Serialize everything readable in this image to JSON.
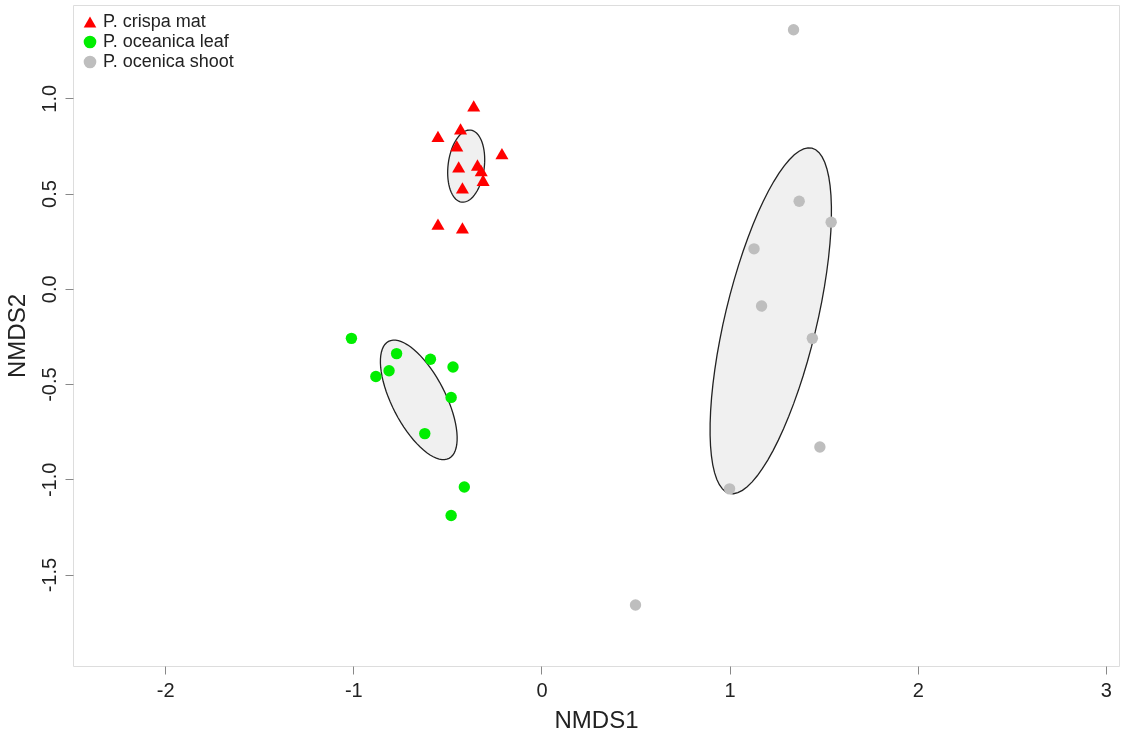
{
  "chart_data": {
    "type": "scatter",
    "xlabel": "NMDS1",
    "ylabel": "NMDS2",
    "xlim": [
      -2.49,
      3.07
    ],
    "ylim": [
      -1.98,
      1.49
    ],
    "xticks": [
      -2,
      -1,
      0,
      1,
      2,
      3
    ],
    "yticks": [
      {
        "value": -1.5,
        "label": "-1.5"
      },
      {
        "value": -1,
        "label": "-1.0"
      },
      {
        "value": -0.5,
        "label": "-0.5"
      },
      {
        "value": 0,
        "label": "0.0"
      },
      {
        "value": 0.5,
        "label": "0.5"
      },
      {
        "value": 1,
        "label": "1.0"
      }
    ],
    "grid": false,
    "legend": "top left",
    "series": [
      {
        "type": "scatter",
        "name": "P. crispa mat",
        "color": "#ff0000",
        "marker": "triangle",
        "x": [
          -0.36,
          -0.55,
          -0.43,
          -0.45,
          -0.21,
          -0.44,
          -0.34,
          -0.32,
          -0.31,
          -0.42,
          -0.55,
          -0.42
        ],
        "values": [
          0.96,
          0.8,
          0.84,
          0.75,
          0.71,
          0.64,
          0.65,
          0.62,
          0.57,
          0.53,
          0.34,
          0.32
        ]
      },
      {
        "type": "scatter",
        "name": "P. oceanica leaf",
        "color": "#00ee00",
        "marker": "circle",
        "x": [
          -1.01,
          -0.77,
          -0.81,
          -0.88,
          -0.59,
          -0.47,
          -0.48,
          -0.62,
          -0.41,
          -0.48
        ],
        "values": [
          -0.26,
          -0.34,
          -0.43,
          -0.46,
          -0.37,
          -0.41,
          -0.57,
          -0.76,
          -1.04,
          -1.19
        ]
      },
      {
        "type": "scatter",
        "name": "P. ocenica shoot",
        "color": "#bebebe",
        "marker": "circle",
        "x": [
          1.34,
          1.37,
          1.54,
          1.13,
          1.17,
          1.44,
          1.48,
          1.0,
          0.5
        ],
        "values": [
          1.36,
          0.46,
          0.35,
          0.21,
          -0.09,
          -0.26,
          -0.83,
          -1.05,
          -1.66
        ]
      }
    ]
  }
}
